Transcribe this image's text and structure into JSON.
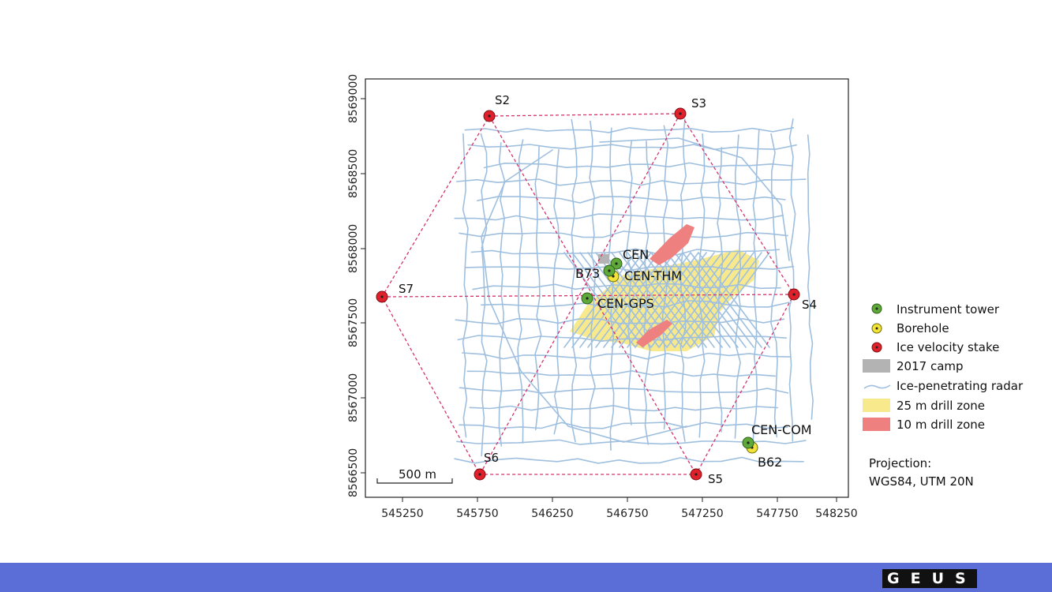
{
  "map": {
    "x_ticks": [
      "545250",
      "545750",
      "546250",
      "546750",
      "547250",
      "547750",
      "548250"
    ],
    "y_ticks": [
      "8566500",
      "8567000",
      "8567500",
      "8568000",
      "8568500",
      "8569000"
    ],
    "stakes": {
      "s2": "S2",
      "s3": "S3",
      "s4": "S4",
      "s5": "S5",
      "s6": "S6",
      "s7": "S7"
    },
    "sites": {
      "cen": "CEN",
      "cen_thm": "CEN-THM",
      "b73": "B73",
      "cen_gps": "CEN-GPS",
      "cen_com": "CEN-COM",
      "b62": "B62"
    },
    "scale_bar": "500 m"
  },
  "legend": {
    "instrument_tower": "Instrument tower",
    "borehole": "Borehole",
    "ice_velocity_stake": "Ice velocity stake",
    "camp_2017": "2017 camp",
    "radar": "Ice-penetrating radar",
    "drill_25m": "25 m drill zone",
    "drill_10m": "10 m drill zone",
    "projection_title": "Projection:",
    "projection_value": "WGS84, UTM 20N"
  },
  "colors": {
    "tower": "#5fa83a",
    "borehole": "#f2e33a",
    "stake": "#e0202a",
    "camp": "#b3b3b3",
    "radar": "#9fbfdf",
    "drill_25m": "#f8ea8c",
    "drill_10m": "#ee8080",
    "dashed": "#d6336c",
    "footer": "#5b6dd6"
  },
  "logo_text": "GEUS"
}
